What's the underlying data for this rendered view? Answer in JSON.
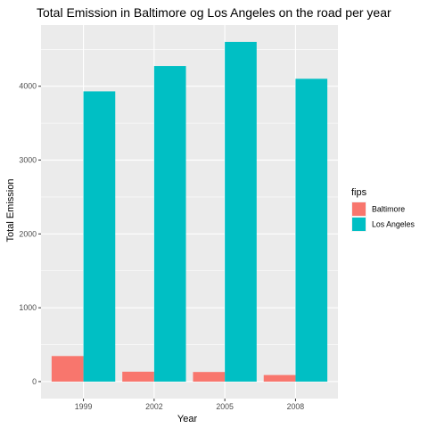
{
  "chart_data": {
    "type": "bar",
    "title": "Total Emission in Baltimore og Los Angeles on the road per year",
    "xlabel": "Year",
    "ylabel": "Total Emission",
    "categories": [
      "1999",
      "2002",
      "2005",
      "2008"
    ],
    "series": [
      {
        "name": "Baltimore",
        "color": "#F8766D",
        "values": [
          346,
          134,
          130,
          89
        ]
      },
      {
        "name": "Los Angeles",
        "color": "#00BFC4",
        "values": [
          3931,
          4274,
          4601,
          4101
        ]
      }
    ],
    "ylim": [
      -230,
      4830
    ],
    "yticks": [
      0,
      1000,
      2000,
      3000,
      4000
    ],
    "ytick_labels": [
      "0",
      "1000",
      "2000",
      "3000",
      "4000"
    ],
    "grid": true,
    "legend": {
      "title": "fips",
      "position": "right"
    },
    "panel_background": "#EBEBEB",
    "grid_color": "#FFFFFF"
  }
}
